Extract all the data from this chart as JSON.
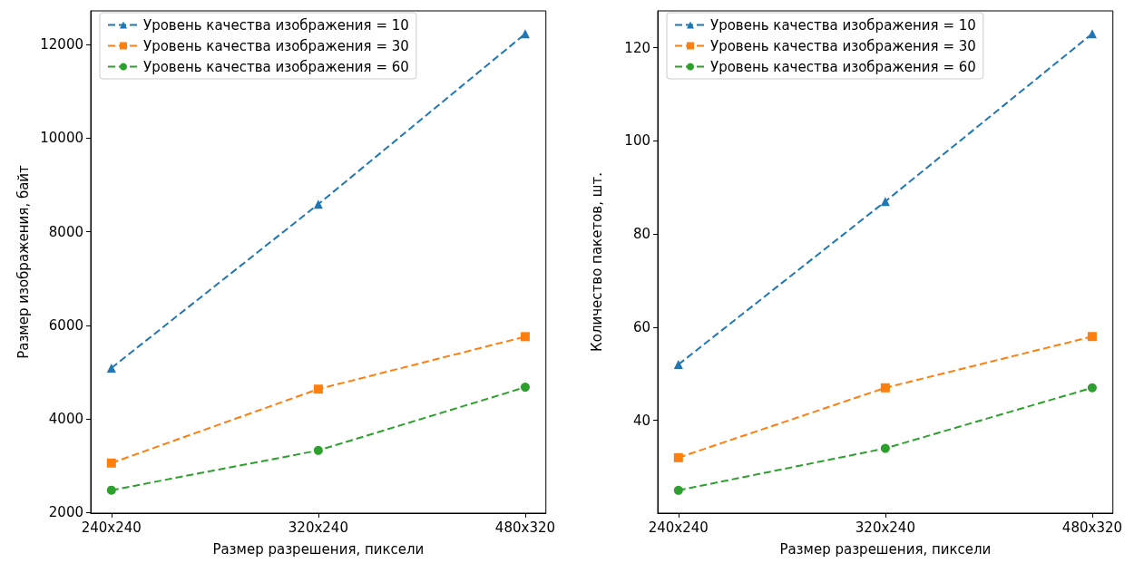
{
  "chart_data": [
    {
      "type": "line",
      "xlabel": "Размер разрешения, пиксели",
      "ylabel": "Размер изображения, байт",
      "categories": [
        "240x240",
        "320x240",
        "480x320"
      ],
      "ylim": [
        1990,
        12720
      ],
      "yticks": [
        2000,
        4000,
        6000,
        8000,
        10000,
        12000
      ],
      "grid": false,
      "legend": "top left",
      "line_style": "dashed",
      "series": [
        {
          "name": "Уровень качества изображения = 10",
          "color": "#1f77b4",
          "marker": "triangle",
          "values": [
            5090,
            8590,
            12230
          ]
        },
        {
          "name": "Уровень качества изображения = 30",
          "color": "#ff7f0e",
          "marker": "square",
          "values": [
            3060,
            4640,
            5760
          ]
        },
        {
          "name": "Уровень качества изображения = 60",
          "color": "#2ca02c",
          "marker": "circle",
          "values": [
            2480,
            3330,
            4680
          ]
        }
      ]
    },
    {
      "type": "line",
      "xlabel": "Размер разрешения, пиксели",
      "ylabel": "Количество пакетов, шт.",
      "categories": [
        "240x240",
        "320x240",
        "480x320"
      ],
      "ylim": [
        20.1,
        127.9
      ],
      "yticks": [
        40,
        60,
        80,
        100,
        120
      ],
      "grid": false,
      "legend": "top left",
      "line_style": "dashed",
      "series": [
        {
          "name": "Уровень качества изображения = 10",
          "color": "#1f77b4",
          "marker": "triangle",
          "values": [
            52,
            87,
            123
          ]
        },
        {
          "name": "Уровень качества изображения = 30",
          "color": "#ff7f0e",
          "marker": "square",
          "values": [
            32,
            47,
            58
          ]
        },
        {
          "name": "Уровень качества изображения = 60",
          "color": "#2ca02c",
          "marker": "circle",
          "values": [
            25,
            34,
            47
          ]
        }
      ]
    }
  ]
}
